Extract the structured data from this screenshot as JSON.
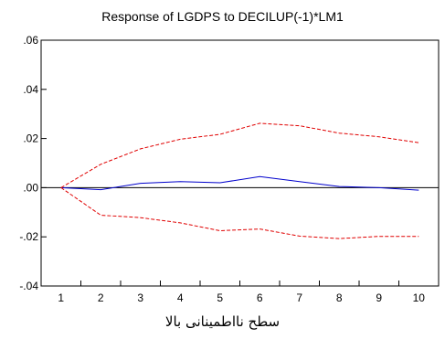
{
  "chart_data": {
    "type": "line",
    "title": "Response of LGDPS to DECILUP(-1)*LM1",
    "xlabel": "سطح نااطمینانی بالا",
    "ylabel": "",
    "x": [
      1,
      2,
      3,
      4,
      5,
      6,
      7,
      8,
      9,
      10
    ],
    "xlim": [
      0.5,
      10.5
    ],
    "ylim": [
      -0.04,
      0.06
    ],
    "yticks": [
      ".06",
      ".04",
      ".02",
      ".00",
      "-.02",
      "-.04"
    ],
    "ytick_values": [
      0.06,
      0.04,
      0.02,
      0.0,
      -0.02,
      -0.04
    ],
    "zero_line": true,
    "grid": false,
    "series": [
      {
        "role": "response",
        "color": "#0000cc",
        "style": "solid",
        "values": [
          0.0,
          -0.0008,
          0.0018,
          0.0025,
          0.002,
          0.0045,
          0.0025,
          0.0005,
          0.0,
          -0.001
        ]
      },
      {
        "role": "upper-band",
        "color": "#e00000",
        "style": "dashed",
        "values": [
          0.0,
          0.0095,
          0.0158,
          0.0197,
          0.0217,
          0.0262,
          0.0252,
          0.0222,
          0.0207,
          0.0183
        ]
      },
      {
        "role": "lower-band",
        "color": "#e00000",
        "style": "dashed",
        "values": [
          0.0,
          -0.0112,
          -0.0122,
          -0.0143,
          -0.0175,
          -0.0168,
          -0.0197,
          -0.0207,
          -0.0198,
          -0.0198
        ]
      }
    ]
  }
}
